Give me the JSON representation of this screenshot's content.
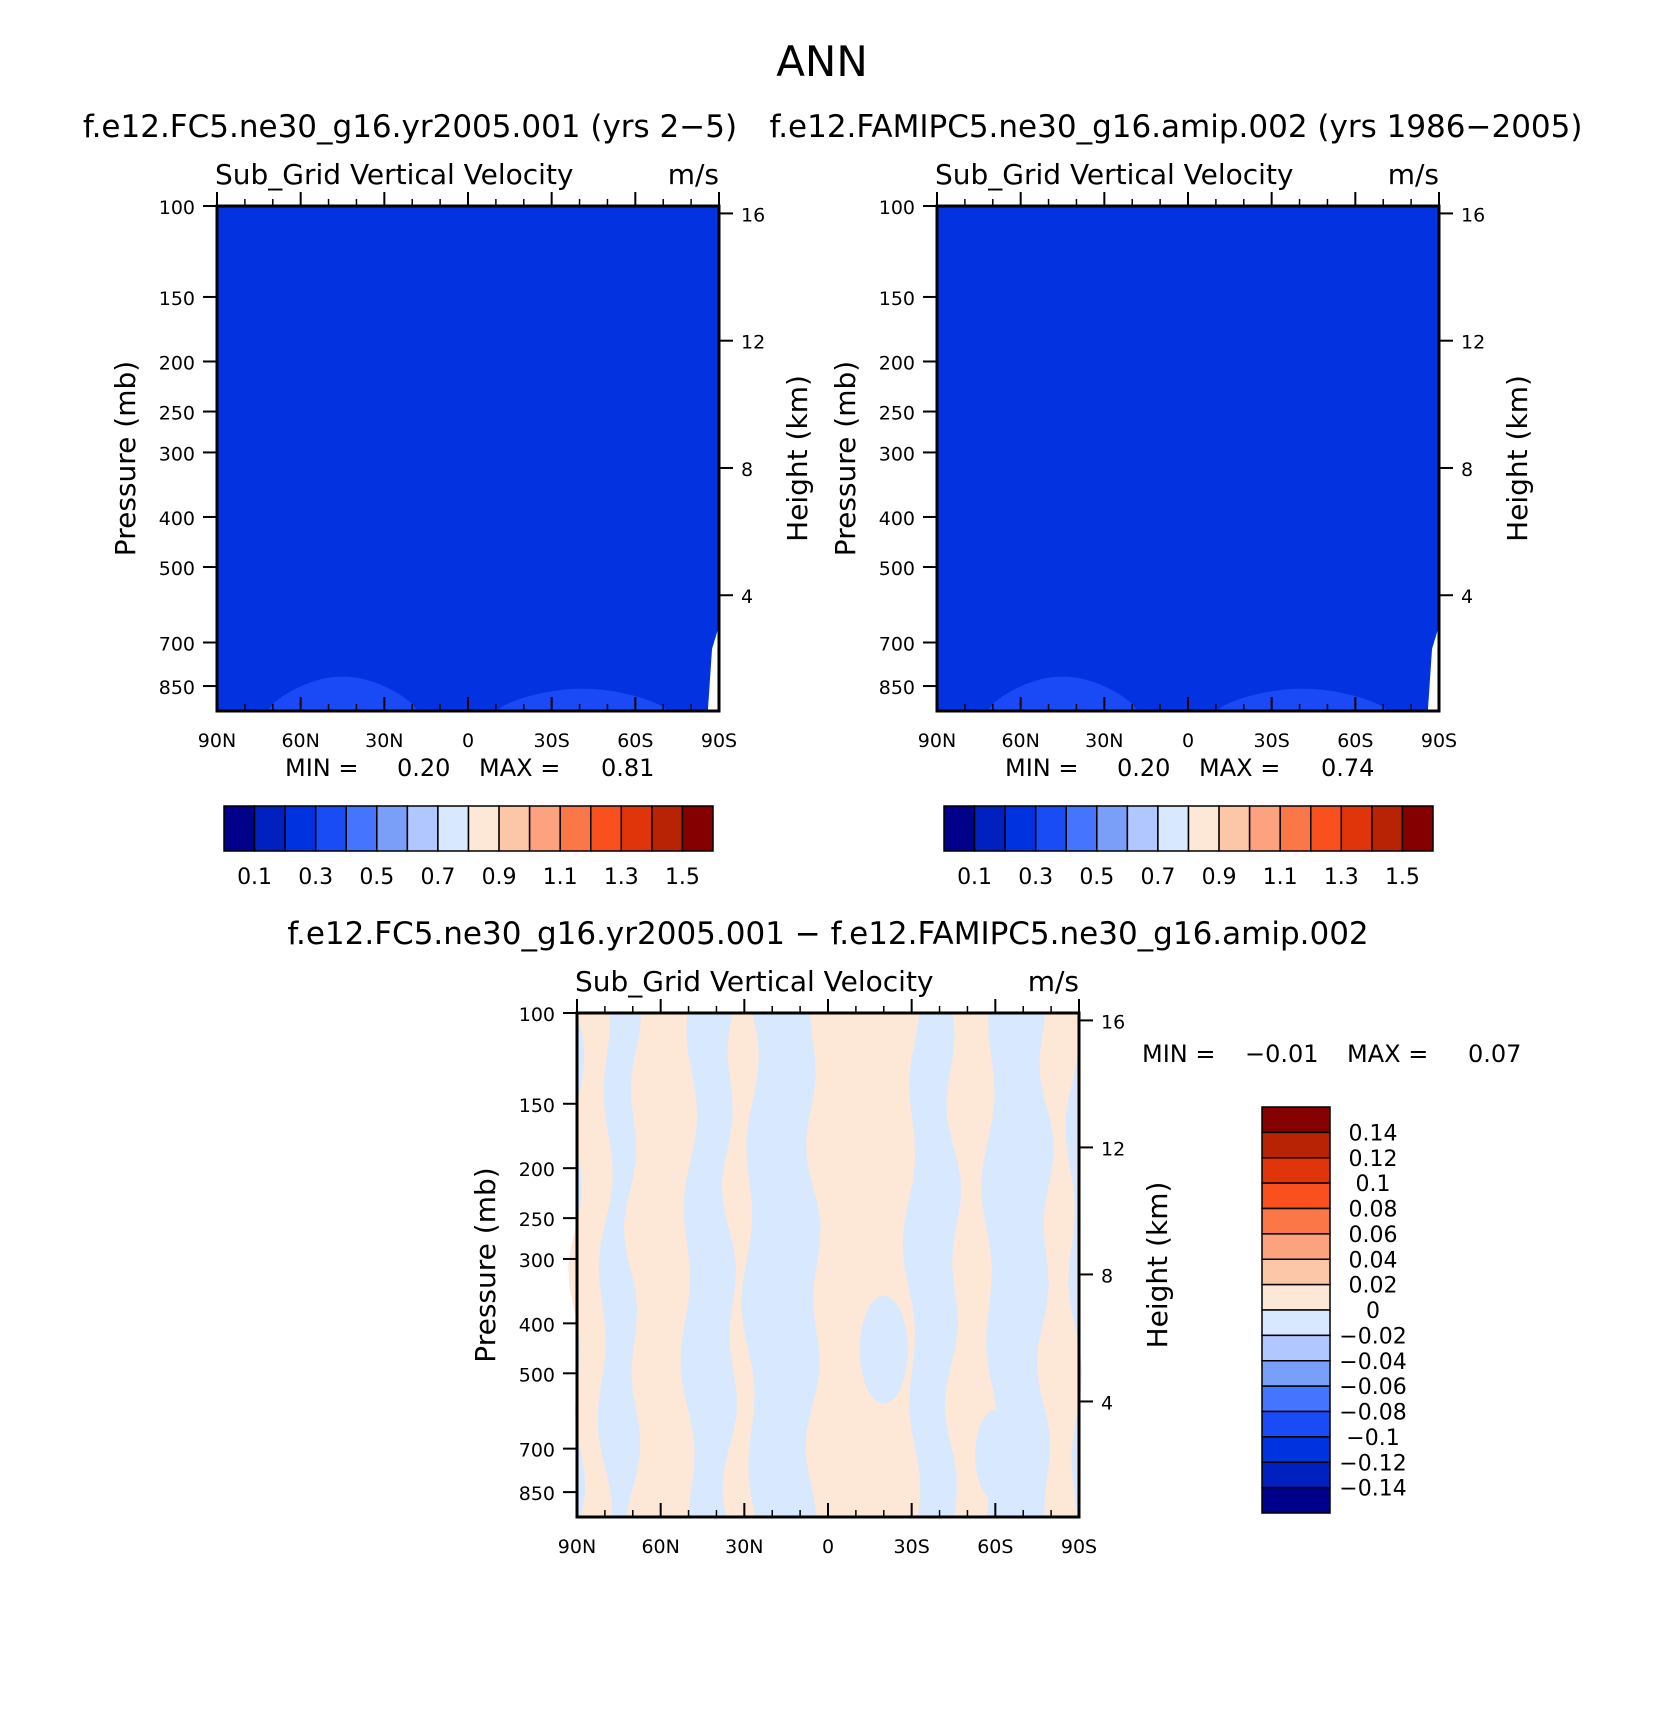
{
  "figure_title": "ANN",
  "chart_data": [
    {
      "type": "heatmap",
      "id": "top-left",
      "case_title": "f.e12.FC5.ne30_g16.yr2005.001 (yrs 2−5)",
      "subtitle": "Sub_Grid Vertical Velocity",
      "units": "m/s",
      "ylabel": "Pressure (mb)",
      "y2label": "Height (km)",
      "x_ticks": [
        "90N",
        "60N",
        "30N",
        "0",
        "30S",
        "60S",
        "90S"
      ],
      "y_ticks": [
        "100",
        "150",
        "200",
        "250",
        "300",
        "400",
        "500",
        "700",
        "850"
      ],
      "y2_ticks": [
        "16",
        "12",
        "8",
        "4"
      ],
      "min_text": "MIN =",
      "min_value": "0.20",
      "max_text": "MAX =",
      "max_value": "0.81",
      "colorbar": {
        "levels": [
          0.1,
          0.2,
          0.3,
          0.4,
          0.5,
          0.6,
          0.7,
          0.8,
          0.9,
          1.0,
          1.1,
          1.2,
          1.3,
          1.4,
          1.5
        ],
        "labels": [
          "0.1",
          "0.3",
          "0.5",
          "0.7",
          "0.9",
          "1.1",
          "1.3",
          "1.5"
        ]
      },
      "dominant_range": [
        0.2,
        0.3
      ]
    },
    {
      "type": "heatmap",
      "id": "top-right",
      "case_title": "f.e12.FAMIPC5.ne30_g16.amip.002 (yrs 1986−2005)",
      "subtitle": "Sub_Grid Vertical Velocity",
      "units": "m/s",
      "ylabel": "Pressure (mb)",
      "y2label": "Height (km)",
      "x_ticks": [
        "90N",
        "60N",
        "30N",
        "0",
        "30S",
        "60S",
        "90S"
      ],
      "y_ticks": [
        "100",
        "150",
        "200",
        "250",
        "300",
        "400",
        "500",
        "700",
        "850"
      ],
      "y2_ticks": [
        "16",
        "12",
        "8",
        "4"
      ],
      "min_text": "MIN =",
      "min_value": "0.20",
      "max_text": "MAX =",
      "max_value": "0.74",
      "colorbar": {
        "levels": [
          0.1,
          0.2,
          0.3,
          0.4,
          0.5,
          0.6,
          0.7,
          0.8,
          0.9,
          1.0,
          1.1,
          1.2,
          1.3,
          1.4,
          1.5
        ],
        "labels": [
          "0.1",
          "0.3",
          "0.5",
          "0.7",
          "0.9",
          "1.1",
          "1.3",
          "1.5"
        ]
      },
      "dominant_range": [
        0.2,
        0.3
      ]
    },
    {
      "type": "heatmap",
      "id": "difference",
      "case_title": "f.e12.FC5.ne30_g16.yr2005.001 − f.e12.FAMIPC5.ne30_g16.amip.002",
      "subtitle": "Sub_Grid Vertical Velocity",
      "units": "m/s",
      "ylabel": "Pressure (mb)",
      "y2label": "Height (km)",
      "x_ticks": [
        "90N",
        "60N",
        "30N",
        "0",
        "30S",
        "60S",
        "90S"
      ],
      "y_ticks": [
        "100",
        "150",
        "200",
        "250",
        "300",
        "400",
        "500",
        "700",
        "850"
      ],
      "y2_ticks": [
        "16",
        "12",
        "8",
        "4"
      ],
      "min_text": "MIN =",
      "min_value": "−0.01",
      "max_text": "MAX =",
      "max_value": "0.07",
      "colorbar": {
        "levels": [
          0.14,
          0.12,
          0.1,
          0.08,
          0.06,
          0.04,
          0.02,
          0,
          -0.02,
          -0.04,
          -0.06,
          -0.08,
          -0.1,
          -0.12,
          -0.14
        ],
        "labels": [
          "0.14",
          "0.12",
          "0.1",
          "0.08",
          "0.06",
          "0.04",
          "0.02",
          "0",
          "−0.02",
          "−0.04",
          "−0.06",
          "−0.08",
          "−0.1",
          "−0.12",
          "−0.14"
        ]
      },
      "positive_bands_lat": [
        [
          90,
          80
        ],
        [
          70,
          50
        ],
        [
          35,
          28
        ],
        [
          5,
          -30
        ],
        [
          -45,
          -58
        ],
        [
          -78,
          -88
        ]
      ],
      "negative_bands_lat": [
        [
          80,
          70
        ],
        [
          50,
          35
        ],
        [
          28,
          5
        ],
        [
          -30,
          -45
        ],
        [
          -58,
          -78
        ]
      ]
    }
  ],
  "colors": {
    "blue_scale": [
      "#00008b",
      "#0020bf",
      "#0033e0",
      "#1a4cf5",
      "#4575ff",
      "#7a9ff8",
      "#b0c8ff",
      "#d8e8ff"
    ],
    "red_scale": [
      "#fde8d8",
      "#fcc6a8",
      "#fca27e",
      "#fb7748",
      "#f9501e",
      "#e0340a",
      "#b82205",
      "#850000"
    ],
    "top_fill": "#0332e0",
    "top_bump": "#1a4af5",
    "diff_pos": "#fde8d8",
    "diff_neg": "#d8e8ff"
  }
}
